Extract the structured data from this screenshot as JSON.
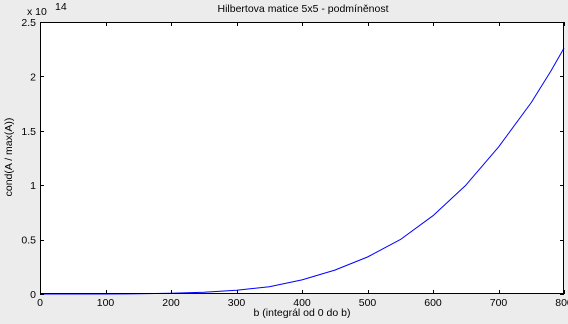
{
  "chart_data": {
    "type": "line",
    "title": "Hilbertova matice 5x5 - podmíněnost",
    "xlabel": "b (integrál od 0 do b)",
    "ylabel": "cond(A / max(A))",
    "y_exponent_base": "x 10",
    "y_exponent_power": "14",
    "xlim": [
      0,
      800
    ],
    "ylim": [
      0,
      2.5
    ],
    "xticks": [
      0,
      100,
      200,
      300,
      400,
      500,
      600,
      700,
      800
    ],
    "xtick_labels": [
      "0",
      "100",
      "200",
      "300",
      "400",
      "500",
      "600",
      "700",
      "800"
    ],
    "yticks": [
      0,
      0.5,
      1,
      1.5,
      2,
      2.5
    ],
    "ytick_labels": [
      "0",
      "0.5",
      "1",
      "1.5",
      "2",
      "2.5"
    ],
    "grid": false,
    "series": [
      {
        "color": "#0000ff",
        "x": [
          0,
          100,
          150,
          200,
          250,
          300,
          350,
          400,
          450,
          500,
          550,
          600,
          650,
          700,
          750,
          780,
          800
        ],
        "y": [
          0,
          0.0003,
          0.002,
          0.007,
          0.017,
          0.035,
          0.066,
          0.13,
          0.22,
          0.34,
          0.5,
          0.72,
          1.0,
          1.35,
          1.76,
          2.05,
          2.26
        ]
      }
    ]
  }
}
